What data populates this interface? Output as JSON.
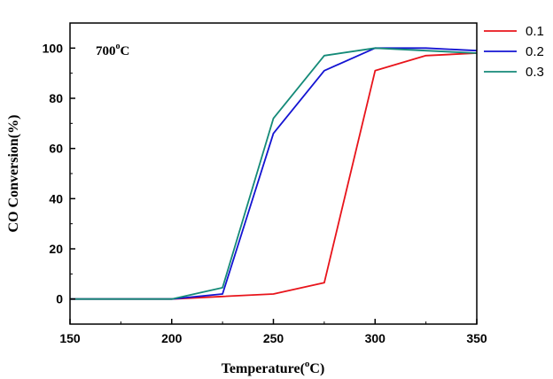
{
  "chart_data": {
    "type": "line",
    "title": "",
    "xlabel": {
      "main": "Temperature(",
      "sup": "o",
      "tail": "C)"
    },
    "ylabel": "CO Conversion(%)",
    "annotation": {
      "main": "700",
      "sup": "o",
      "tail": "C"
    },
    "xlim": [
      150,
      350
    ],
    "ylim": [
      -10,
      110
    ],
    "x_ticks": [
      150,
      200,
      250,
      300,
      350
    ],
    "y_ticks": [
      0,
      20,
      40,
      60,
      80,
      100
    ],
    "grid": false,
    "legend": "top-right, outside plot",
    "series": [
      {
        "name": "0.1",
        "color": "#e8141b",
        "x": [
          150,
          200,
          225,
          250,
          275,
          300,
          325,
          350
        ],
        "y": [
          0,
          0,
          1,
          2,
          6.5,
          91,
          97,
          98
        ]
      },
      {
        "name": "0.2",
        "color": "#1414d2",
        "x": [
          150,
          200,
          225,
          250,
          275,
          300,
          325,
          350
        ],
        "y": [
          0,
          0,
          2,
          66,
          91,
          100,
          100,
          99
        ]
      },
      {
        "name": "0.3",
        "color": "#148a78",
        "x": [
          150,
          200,
          225,
          250,
          275,
          300,
          325,
          350
        ],
        "y": [
          0,
          0,
          4.5,
          72,
          97,
          100,
          99,
          98
        ]
      }
    ]
  }
}
